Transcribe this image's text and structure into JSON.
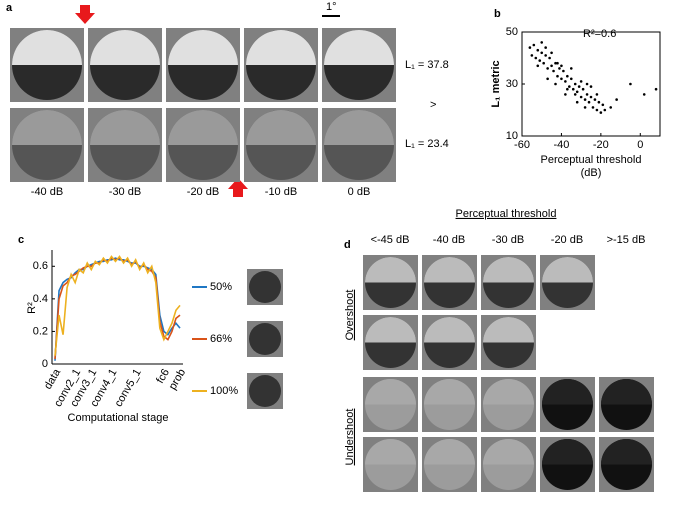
{
  "panel_a": {
    "label": "a",
    "scale_bar": "1°",
    "rows": [
      "L₁ = 37.8",
      "L₁ = 23.4"
    ],
    "comparison": ">",
    "columns": [
      "-40 dB",
      "-30 dB",
      "-20 dB",
      "-10 dB",
      "0 dB"
    ]
  },
  "chart_data": [
    {
      "type": "scatter",
      "label": "b",
      "annotation": "R²=0.6",
      "xlabel": [
        "Perceptual threshold",
        "(dB)"
      ],
      "ylabel": "L₁ metric",
      "color": "#000000",
      "xlim": [
        -60,
        10
      ],
      "xticks": [
        -60,
        -40,
        -20,
        0
      ],
      "ylim": [
        10,
        50
      ],
      "yticks": [
        10,
        30,
        50
      ],
      "x": [
        -56,
        -55,
        -54,
        -53,
        -52,
        -51,
        -50,
        -49,
        -48,
        -47,
        -46,
        -45,
        -44,
        -43,
        -42,
        -41,
        -40,
        -39,
        -38,
        -37,
        -36,
        -35,
        -34,
        -33,
        -32,
        -31,
        -30,
        -29,
        -28,
        -27,
        -26,
        -25,
        -24,
        -23,
        -22,
        -21,
        -20,
        -19,
        -18,
        -50,
        -48,
        -45,
        -42,
        -40,
        -38,
        -35,
        -33,
        -30,
        -28,
        -25,
        -52,
        -47,
        -43,
        -37,
        -32,
        -27,
        -22,
        -5,
        2,
        8,
        -12,
        -15
      ],
      "y": [
        44,
        41,
        45,
        40,
        43,
        39,
        42,
        38,
        41,
        36,
        40,
        37,
        35,
        38,
        33,
        36,
        32,
        35,
        31,
        33,
        29,
        32,
        28,
        30,
        27,
        29,
        25,
        28,
        24,
        26,
        23,
        25,
        21,
        24,
        20,
        23,
        19,
        22,
        20,
        46,
        44,
        42,
        38,
        37,
        26,
        36,
        26,
        31,
        21,
        29,
        37,
        32,
        30,
        28,
        23,
        30,
        26,
        30,
        26,
        28,
        24,
        21
      ]
    },
    {
      "type": "line",
      "label": "c",
      "xlabel": "Computational stage",
      "ylabel": "R²",
      "ylim": [
        0,
        0.7
      ],
      "yticks": [
        0,
        0.2,
        0.4,
        0.6
      ],
      "categories": [
        "data",
        null,
        null,
        null,
        null,
        "conv2_1",
        null,
        null,
        null,
        "conv3_1",
        null,
        null,
        null,
        null,
        "conv4_1",
        null,
        null,
        null,
        null,
        null,
        "conv5_1",
        null,
        null,
        null,
        null,
        null,
        null,
        "fc6",
        null,
        null,
        null,
        "prob"
      ],
      "series": [
        {
          "name": "50%",
          "color": "#1f77c4",
          "values": [
            0.02,
            0.45,
            0.5,
            0.52,
            0.53,
            0.56,
            0.58,
            0.58,
            0.6,
            0.61,
            0.62,
            0.63,
            0.63,
            0.64,
            0.64,
            0.65,
            0.64,
            0.64,
            0.63,
            0.62,
            0.62,
            0.6,
            0.6,
            0.59,
            0.58,
            0.55,
            0.3,
            0.2,
            0.18,
            0.22,
            0.25,
            0.22
          ]
        },
        {
          "name": "66%",
          "color": "#d95319",
          "values": [
            0.03,
            0.4,
            0.48,
            0.5,
            0.54,
            0.55,
            0.57,
            0.59,
            0.6,
            0.6,
            0.62,
            0.62,
            0.64,
            0.63,
            0.65,
            0.64,
            0.65,
            0.63,
            0.64,
            0.61,
            0.63,
            0.59,
            0.61,
            0.58,
            0.57,
            0.53,
            0.26,
            0.17,
            0.15,
            0.2,
            0.28,
            0.3
          ]
        },
        {
          "name": "100%",
          "color": "#edb120",
          "values": [
            0.05,
            0.3,
            0.18,
            0.47,
            0.55,
            0.5,
            0.58,
            0.56,
            0.62,
            0.58,
            0.63,
            0.61,
            0.65,
            0.62,
            0.66,
            0.63,
            0.66,
            0.62,
            0.65,
            0.6,
            0.64,
            0.58,
            0.62,
            0.56,
            0.6,
            0.5,
            0.22,
            0.15,
            0.2,
            0.25,
            0.33,
            0.36
          ]
        }
      ]
    }
  ],
  "panel_d": {
    "label": "d",
    "title": "Perceptual threshold",
    "columns": [
      "<-45 dB",
      "-40 dB",
      "-30 dB",
      "-20 dB",
      ">-15 dB"
    ],
    "groups": [
      "Overshoot",
      "Undershoot"
    ]
  }
}
